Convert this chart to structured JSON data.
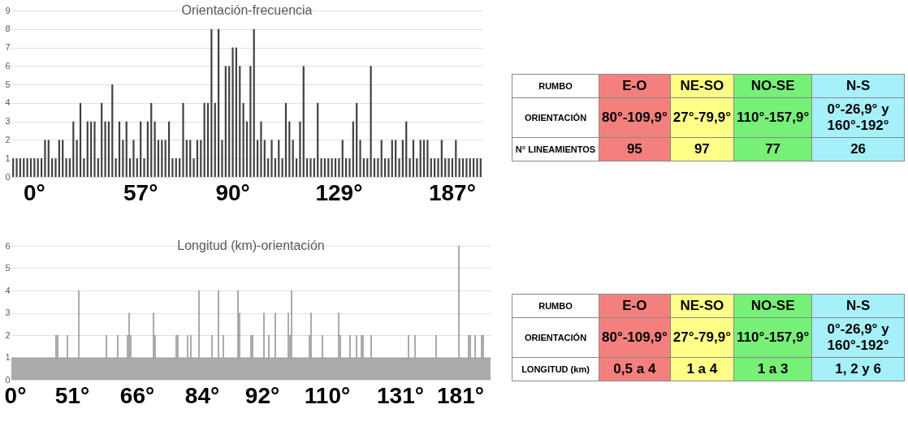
{
  "chart_data": [
    {
      "type": "bar",
      "title": "Orientación-frecuencia",
      "color": "#404040",
      "ylim": [
        0,
        9
      ],
      "yticks": [
        0,
        1,
        2,
        3,
        4,
        5,
        6,
        7,
        8,
        9
      ],
      "grid": "y",
      "categories": [
        null,
        null,
        null,
        null,
        null,
        null,
        "0°",
        null,
        null,
        null,
        null,
        null,
        null,
        null,
        null,
        null,
        null,
        null,
        null,
        null,
        null,
        null,
        null,
        null,
        null,
        null,
        null,
        null,
        null,
        null,
        null,
        null,
        null,
        null,
        null,
        null,
        "57°",
        null,
        null,
        null,
        null,
        null,
        null,
        null,
        null,
        null,
        null,
        null,
        null,
        null,
        null,
        null,
        null,
        null,
        null,
        null,
        null,
        null,
        null,
        null,
        null,
        null,
        "90°",
        null,
        null,
        null,
        null,
        null,
        null,
        null,
        null,
        null,
        null,
        null,
        null,
        null,
        null,
        null,
        null,
        null,
        null,
        null,
        null,
        null,
        null,
        null,
        null,
        null,
        null,
        null,
        null,
        null,
        "129°",
        null,
        null,
        null,
        null,
        null,
        null,
        null,
        null,
        null,
        null,
        null,
        null,
        null,
        null,
        null,
        null,
        null,
        null,
        null,
        null,
        null,
        null,
        null,
        null,
        null,
        null,
        null,
        null,
        null,
        null,
        null,
        "187°",
        null,
        null,
        null,
        null,
        null,
        null,
        null,
        null
      ],
      "values": [
        1,
        1,
        1,
        1,
        1,
        1,
        1,
        1,
        1,
        2,
        2,
        1,
        1,
        2,
        2,
        1,
        1,
        3,
        2,
        4,
        1,
        3,
        3,
        3,
        1,
        4,
        3,
        3,
        5,
        1,
        3,
        2,
        3,
        1,
        2,
        1,
        3,
        1,
        3,
        4,
        3,
        2,
        2,
        2,
        3,
        1,
        1,
        1,
        4,
        2,
        2,
        1,
        2,
        2,
        4,
        4,
        8,
        4,
        8,
        2,
        6,
        6,
        7,
        7,
        6,
        4,
        3,
        6,
        8,
        2,
        3,
        2,
        1,
        2,
        1,
        2,
        1,
        4,
        3,
        2,
        1,
        3,
        6,
        1,
        1,
        1,
        4,
        1,
        1,
        1,
        1,
        1,
        1,
        2,
        1,
        1,
        3,
        4,
        2,
        1,
        1,
        6,
        1,
        1,
        2,
        1,
        1,
        2,
        2,
        1,
        2,
        3,
        1,
        2,
        1,
        2,
        2,
        2,
        1,
        1,
        1,
        2,
        1,
        1,
        1,
        2,
        1,
        1,
        1,
        1,
        1,
        1,
        1
      ]
    },
    {
      "type": "other",
      "xlabel": "RUMBO",
      "categories": [
        "E-O",
        "NE-SO",
        "NO-SE",
        "N-S"
      ],
      "y_categories": [
        "ORIENTACIÓN",
        "N° LINEAMIENTOS"
      ],
      "colors": [
        "#f4807d",
        "#ffff88",
        "#77f077",
        "#a6f0fa"
      ],
      "cell_labels": [
        [
          "80°-109,9°",
          "27°-79,9°",
          "110°-157,9°",
          "0°-26,9° y 160°-192°"
        ],
        [
          "95",
          "97",
          "77",
          "26"
        ]
      ]
    },
    {
      "type": "bar",
      "title": "Longitud (km)-orientación",
      "color": "#595959",
      "ylim": [
        0,
        6
      ],
      "yticks": [
        0,
        1,
        2,
        3,
        4,
        5,
        6
      ],
      "grid": "y",
      "categories": [
        null,
        null,
        "0°",
        null,
        null,
        null,
        null,
        null,
        null,
        null,
        null,
        null,
        null,
        null,
        null,
        null,
        null,
        null,
        null,
        null,
        null,
        null,
        null,
        null,
        null,
        null,
        null,
        null,
        null,
        null,
        null,
        null,
        null,
        null,
        null,
        null,
        null,
        "51°",
        null,
        null,
        null,
        null,
        null,
        null,
        null,
        null,
        null,
        null,
        null,
        null,
        null,
        null,
        null,
        null,
        null,
        null,
        null,
        null,
        null,
        null,
        null,
        null,
        null,
        null,
        null,
        null,
        null,
        null,
        null,
        null,
        null,
        null,
        null,
        null,
        null,
        null,
        null,
        "66°",
        null,
        null,
        null,
        null,
        null,
        null,
        null,
        null,
        null,
        null,
        null,
        null,
        null,
        null,
        null,
        null,
        null,
        null,
        null,
        null,
        null,
        null,
        null,
        null,
        null,
        null,
        null,
        null,
        null,
        null,
        null,
        null,
        null,
        null,
        null,
        null,
        null,
        null,
        null,
        "84°",
        null,
        null,
        null,
        null,
        null,
        null,
        null,
        null,
        null,
        null,
        null,
        null,
        null,
        null,
        null,
        null,
        null,
        null,
        null,
        null,
        null,
        null,
        null,
        null,
        null,
        null,
        null,
        null,
        null,
        null,
        null,
        null,
        null,
        null,
        null,
        null,
        "92°",
        null,
        null,
        null,
        null,
        null,
        null,
        null,
        null,
        null,
        null,
        null,
        null,
        null,
        null,
        null,
        null,
        null,
        null,
        null,
        null,
        null,
        null,
        null,
        null,
        null,
        null,
        null,
        null,
        null,
        null,
        null,
        null,
        null,
        null,
        null,
        null,
        null,
        null,
        null,
        "110°",
        null,
        null,
        null,
        null,
        null,
        null,
        null,
        null,
        null,
        null,
        null,
        null,
        null,
        null,
        null,
        null,
        null,
        null,
        null,
        null,
        null,
        null,
        null,
        null,
        null,
        null,
        null,
        null,
        null,
        null,
        null,
        null,
        null,
        null,
        null,
        null,
        null,
        null,
        null,
        null,
        null,
        null,
        null,
        null,
        "131°",
        null,
        null,
        null,
        null,
        null,
        null,
        null,
        null,
        null,
        null,
        null,
        null,
        null,
        null,
        null,
        null,
        null,
        null,
        null,
        null,
        null,
        null,
        null,
        null,
        null,
        null,
        null,
        null,
        null,
        null,
        null,
        null,
        null,
        null,
        null,
        null,
        "181°",
        null,
        null,
        null,
        null,
        null,
        null,
        null,
        null,
        null,
        null,
        null,
        null,
        null,
        null,
        null,
        null,
        null,
        null
      ],
      "values": [
        1,
        1,
        1,
        1,
        1,
        1,
        1,
        1,
        1,
        1,
        1,
        1,
        1,
        1,
        1,
        1,
        1,
        1,
        1,
        1,
        1,
        1,
        1,
        1,
        1,
        1,
        1,
        2,
        2,
        1,
        1,
        1,
        1,
        1,
        2,
        1,
        1,
        1,
        1,
        1,
        1,
        4,
        1,
        1,
        1,
        1,
        1,
        1,
        1,
        1,
        1,
        1,
        1,
        1,
        1,
        1,
        1,
        1,
        2,
        1,
        1,
        1,
        1,
        1,
        1,
        2,
        1,
        1,
        1,
        1,
        1,
        2,
        3,
        2,
        1,
        1,
        1,
        1,
        1,
        1,
        1,
        1,
        1,
        1,
        1,
        1,
        1,
        3,
        2,
        1,
        1,
        1,
        1,
        1,
        1,
        1,
        1,
        1,
        1,
        1,
        1,
        2,
        2,
        1,
        1,
        1,
        1,
        1,
        2,
        1,
        2,
        1,
        1,
        1,
        1,
        4,
        1,
        1,
        1,
        1,
        1,
        1,
        1,
        2,
        1,
        1,
        1,
        4,
        1,
        1,
        2,
        1,
        1,
        1,
        1,
        1,
        1,
        1,
        1,
        4,
        3,
        1,
        1,
        1,
        1,
        1,
        1,
        2,
        2,
        1,
        1,
        1,
        1,
        1,
        1,
        3,
        1,
        1,
        2,
        1,
        1,
        1,
        3,
        1,
        1,
        1,
        1,
        1,
        1,
        1,
        3,
        2,
        4,
        1,
        1,
        1,
        1,
        1,
        1,
        1,
        1,
        1,
        1,
        2,
        3,
        1,
        1,
        1,
        1,
        1,
        1,
        2,
        1,
        1,
        1,
        1,
        1,
        1,
        1,
        1,
        1,
        3,
        2,
        1,
        1,
        1,
        1,
        1,
        2,
        1,
        1,
        1,
        2,
        1,
        1,
        2,
        2,
        1,
        1,
        1,
        1,
        2,
        1,
        1,
        1,
        1,
        1,
        1,
        1,
        1,
        1,
        1,
        1,
        1,
        1,
        1,
        1,
        1,
        1,
        1,
        1,
        1,
        1,
        1,
        2,
        1,
        1,
        1,
        2,
        1,
        1,
        1,
        1,
        1,
        1,
        1,
        1,
        1,
        1,
        1,
        1,
        2,
        1,
        1,
        1,
        1,
        1,
        1,
        1,
        1,
        1,
        1,
        1,
        1,
        1,
        6,
        1,
        1,
        1,
        1,
        1,
        2,
        2,
        1,
        1,
        2,
        1,
        1,
        1,
        2,
        2,
        1,
        1,
        1,
        1
      ]
    },
    {
      "type": "other",
      "xlabel": "RUMBO",
      "categories": [
        "E-O",
        "NE-SO",
        "NO-SE",
        "N-S"
      ],
      "y_categories": [
        "ORIENTACIÓN",
        "LONGITUD (km)"
      ],
      "colors": [
        "#f4807d",
        "#ffff88",
        "#77f077",
        "#a6f0fa"
      ],
      "cell_labels": [
        [
          "80°-109,9°",
          "27°-79,9°",
          "110°-157,9°",
          "0°-26,9° y 160°-192°"
        ],
        [
          "0,5 a 4",
          "1 a 4",
          "1 a 3",
          "1, 2 y 6"
        ]
      ]
    }
  ]
}
